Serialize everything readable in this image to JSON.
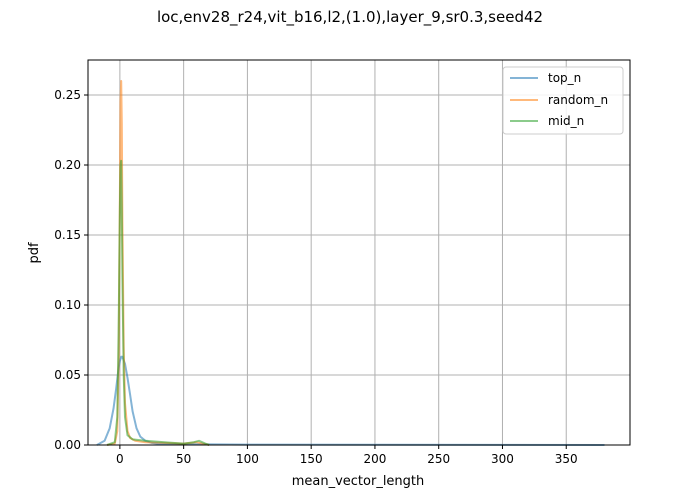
{
  "chart_data": {
    "type": "line",
    "title": "loc,env28_r24,vit_b16,l2,(1.0),layer_9,sr0.3,seed42",
    "xlabel": "mean_vector_length",
    "ylabel": "pdf",
    "xlim": [
      -25,
      400
    ],
    "ylim": [
      0,
      0.275
    ],
    "xticks": [
      0,
      50,
      100,
      150,
      200,
      250,
      300,
      350
    ],
    "yticks": [
      0.0,
      0.05,
      0.1,
      0.15,
      0.2,
      0.25
    ],
    "ytick_labels": [
      "0.00",
      "0.05",
      "0.10",
      "0.15",
      "0.20",
      "0.25"
    ],
    "grid": true,
    "legend_position": "top-right",
    "series": [
      {
        "name": "top_n",
        "color": "#1f77b4",
        "x": [
          -18,
          -12,
          -8,
          -5,
          -3,
          -1,
          0,
          1,
          2,
          4,
          6,
          8,
          10,
          13,
          16,
          20,
          25,
          30,
          40,
          60,
          100,
          200,
          300,
          380
        ],
        "y": [
          0.0,
          0.003,
          0.012,
          0.026,
          0.04,
          0.055,
          0.06,
          0.063,
          0.063,
          0.058,
          0.048,
          0.036,
          0.024,
          0.012,
          0.006,
          0.003,
          0.0015,
          0.001,
          0.0007,
          0.0005,
          0.0003,
          0.0002,
          0.0001,
          0.0
        ]
      },
      {
        "name": "random_n",
        "color": "#ff7f0e",
        "x": [
          -10,
          -4,
          -2,
          -1,
          0,
          0.5,
          1,
          1.5,
          2,
          3,
          4,
          6,
          8,
          12,
          20,
          35,
          50,
          60,
          65,
          70
        ],
        "y": [
          0.0,
          0.001,
          0.01,
          0.06,
          0.18,
          0.245,
          0.26,
          0.23,
          0.16,
          0.07,
          0.03,
          0.01,
          0.005,
          0.003,
          0.002,
          0.0015,
          0.001,
          0.002,
          0.001,
          0.0
        ]
      },
      {
        "name": "mid_n",
        "color": "#2ca02c",
        "x": [
          -10,
          -4,
          -2,
          -1,
          0,
          0.5,
          1,
          1.5,
          2,
          3,
          4,
          6,
          10,
          20,
          35,
          50,
          58,
          62,
          67,
          70
        ],
        "y": [
          0.0,
          0.002,
          0.02,
          0.08,
          0.17,
          0.2,
          0.203,
          0.17,
          0.12,
          0.05,
          0.02,
          0.007,
          0.004,
          0.003,
          0.002,
          0.001,
          0.002,
          0.003,
          0.001,
          0.0
        ]
      }
    ]
  }
}
